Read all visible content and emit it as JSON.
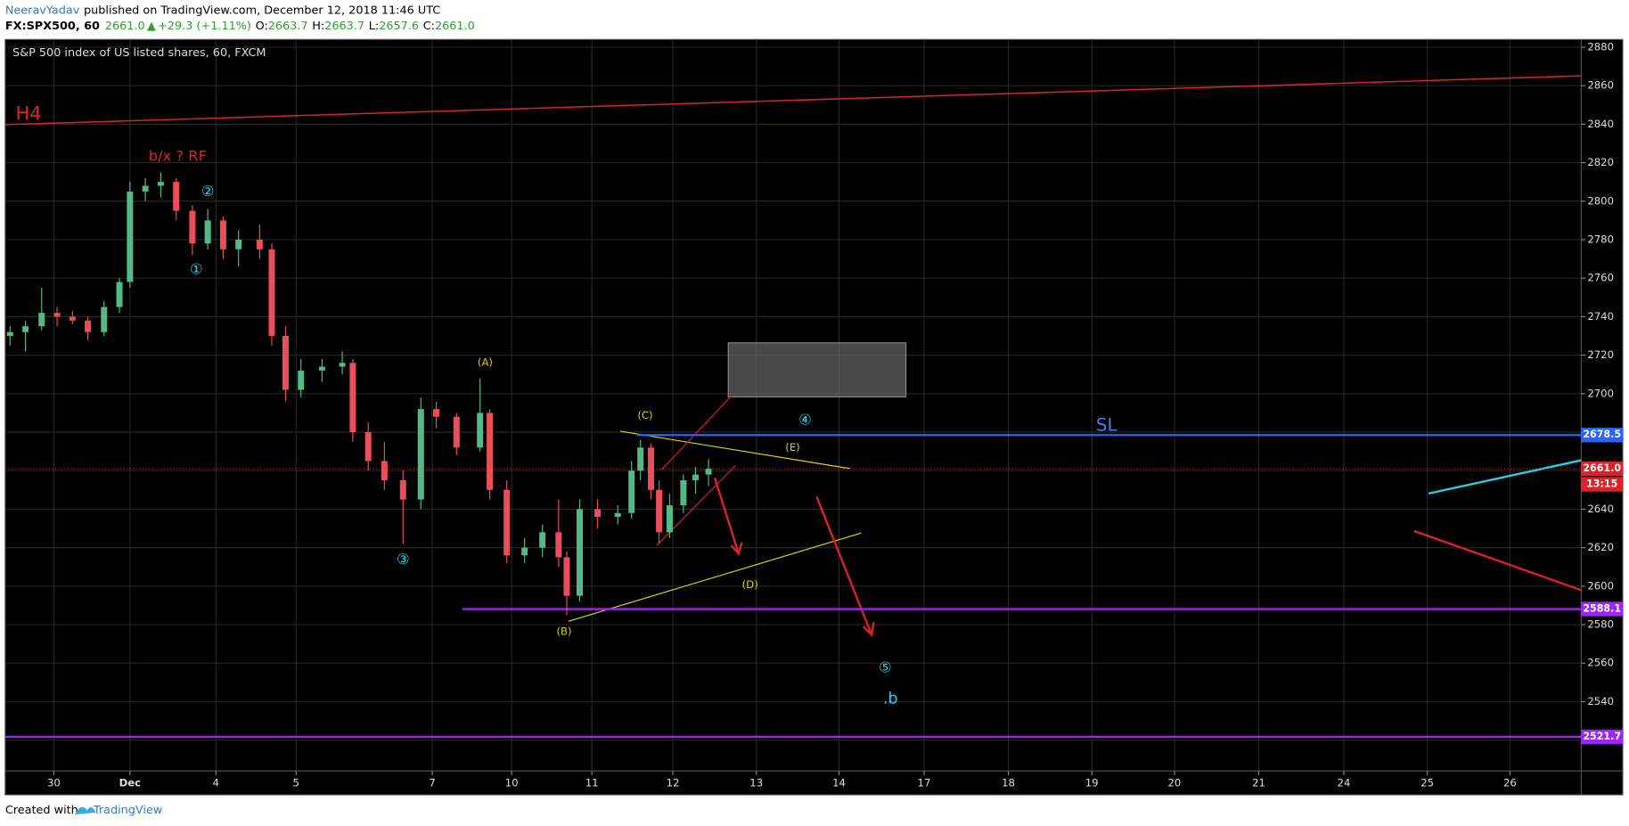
{
  "header": {
    "author": "NeeravYadav",
    "published": "published on TradingView.com, December 12, 2018 11:46 UTC",
    "symbol": "FX:SPX500, 60",
    "last": "2661.0",
    "arrow": "▲",
    "change": "+29.3 (+1.11%)",
    "ohlc": [
      {
        "label": "O:",
        "value": "2663.7"
      },
      {
        "label": "H:",
        "value": "2663.7"
      },
      {
        "label": "L:",
        "value": "2657.6"
      },
      {
        "label": "C:",
        "value": "2661.0"
      }
    ]
  },
  "chart_data": {
    "type": "candlestick",
    "title": "S&P 500 index of US listed shares, 60, FXCM",
    "up_color": "#53b987",
    "down_color": "#eb4d5c",
    "grid": true,
    "x": [
      -0.54,
      -0.35,
      -0.15,
      0.04,
      0.23,
      0.42,
      0.62,
      0.81,
      0.94,
      1.13,
      1.32,
      1.51,
      1.71,
      1.9,
      2.09,
      2.28,
      2.54,
      2.69,
      2.86,
      3.05,
      3.31,
      3.56,
      3.69,
      3.88,
      4.08,
      4.31,
      4.53,
      4.72,
      4.97,
      5.26,
      5.38,
      5.59,
      5.81,
      6.03,
      6.23,
      6.33,
      6.49,
      6.71,
      6.96,
      7.13,
      7.24,
      7.37,
      7.47,
      7.6,
      7.77,
      7.92,
      8.08
    ],
    "open": [
      2730,
      2732,
      2735,
      2742,
      2740,
      2738,
      2732,
      2745,
      2758,
      2805,
      2808,
      2810,
      2795,
      2778,
      2790,
      2775,
      2780,
      2775,
      2730,
      2702,
      2712,
      2714,
      2716,
      2680,
      2665,
      2655,
      2645,
      2692,
      2688,
      2672,
      2690,
      2650,
      2616,
      2620,
      2628,
      2615,
      2595,
      2640,
      2636,
      2638,
      2660,
      2672,
      2650,
      2628,
      2642,
      2655,
      2658
    ],
    "high": [
      2735,
      2738,
      2755,
      2745,
      2743,
      2740,
      2748,
      2760,
      2810,
      2812,
      2815,
      2812,
      2798,
      2796,
      2792,
      2785,
      2788,
      2778,
      2735,
      2718,
      2718,
      2722,
      2718,
      2685,
      2675,
      2660,
      2698,
      2696,
      2690,
      2708,
      2692,
      2655,
      2625,
      2632,
      2645,
      2618,
      2645,
      2645,
      2642,
      2665,
      2676,
      2674,
      2655,
      2648,
      2658,
      2662,
      2666
    ],
    "low": [
      2725,
      2722,
      2733,
      2735,
      2736,
      2728,
      2730,
      2742,
      2755,
      2800,
      2802,
      2790,
      2772,
      2775,
      2770,
      2766,
      2770,
      2725,
      2696,
      2698,
      2706,
      2710,
      2675,
      2660,
      2650,
      2622,
      2640,
      2682,
      2668,
      2670,
      2645,
      2612,
      2612,
      2615,
      2610,
      2585,
      2592,
      2630,
      2632,
      2635,
      2655,
      2645,
      2622,
      2625,
      2638,
      2648,
      2652
    ],
    "close": [
      2732,
      2735,
      2742,
      2740,
      2738,
      2732,
      2745,
      2758,
      2805,
      2808,
      2810,
      2795,
      2778,
      2790,
      2775,
      2780,
      2775,
      2730,
      2702,
      2712,
      2714,
      2716,
      2680,
      2665,
      2655,
      2645,
      2692,
      2688,
      2672,
      2690,
      2650,
      2616,
      2620,
      2628,
      2615,
      2595,
      2640,
      2636,
      2638,
      2660,
      2672,
      2650,
      2628,
      2642,
      2655,
      2658,
      2661
    ],
    "xlim": [
      -0.6,
      18.85
    ],
    "xticks": [
      {
        "value": 0,
        "label": "30"
      },
      {
        "value": 0.94,
        "label": "Dec"
      },
      {
        "value": 2.0,
        "label": "4"
      },
      {
        "value": 2.99,
        "label": "5"
      },
      {
        "value": 4.67,
        "label": "7"
      },
      {
        "value": 5.65,
        "label": "10"
      },
      {
        "value": 6.64,
        "label": "11"
      },
      {
        "value": 7.64,
        "label": "12"
      },
      {
        "value": 8.67,
        "label": "13"
      },
      {
        "value": 9.69,
        "label": "14"
      },
      {
        "value": 10.74,
        "label": "17"
      },
      {
        "value": 11.78,
        "label": "18"
      },
      {
        "value": 12.81,
        "label": "19"
      },
      {
        "value": 13.83,
        "label": "20"
      },
      {
        "value": 14.87,
        "label": "21"
      },
      {
        "value": 15.92,
        "label": "24"
      },
      {
        "value": 16.95,
        "label": "25"
      },
      {
        "value": 17.97,
        "label": "26"
      }
    ],
    "ylim": [
      2504,
      2884
    ],
    "yticks": [
      2520,
      2540,
      2560,
      2580,
      2600,
      2620,
      2640,
      2660,
      2680,
      2700,
      2720,
      2740,
      2760,
      2780,
      2800,
      2820,
      2840,
      2860,
      2880
    ],
    "levels": [
      {
        "value": 2678.5,
        "color": "#2962ff"
      },
      {
        "value": 2588.1,
        "color": "#9c27f0"
      },
      {
        "value": 2521.7,
        "color": "#9c27f0"
      }
    ],
    "last_price": {
      "value": 2661,
      "label": "2661.0",
      "color": "#e0202a"
    },
    "countdown": "13:15",
    "annotations": {
      "h4": "H4",
      "bx": "b/x ? RF",
      "w1": "①",
      "w2": "②",
      "w3": "③",
      "w4": "④",
      "w5": "⑤",
      "b": ".b",
      "sl": "SL",
      "A": "(A)",
      "B": "(B)",
      "C": "(C)",
      "D": "(D)",
      "E": "(E)"
    }
  },
  "footer": {
    "created": "Created with",
    "brand": "TradingView"
  }
}
